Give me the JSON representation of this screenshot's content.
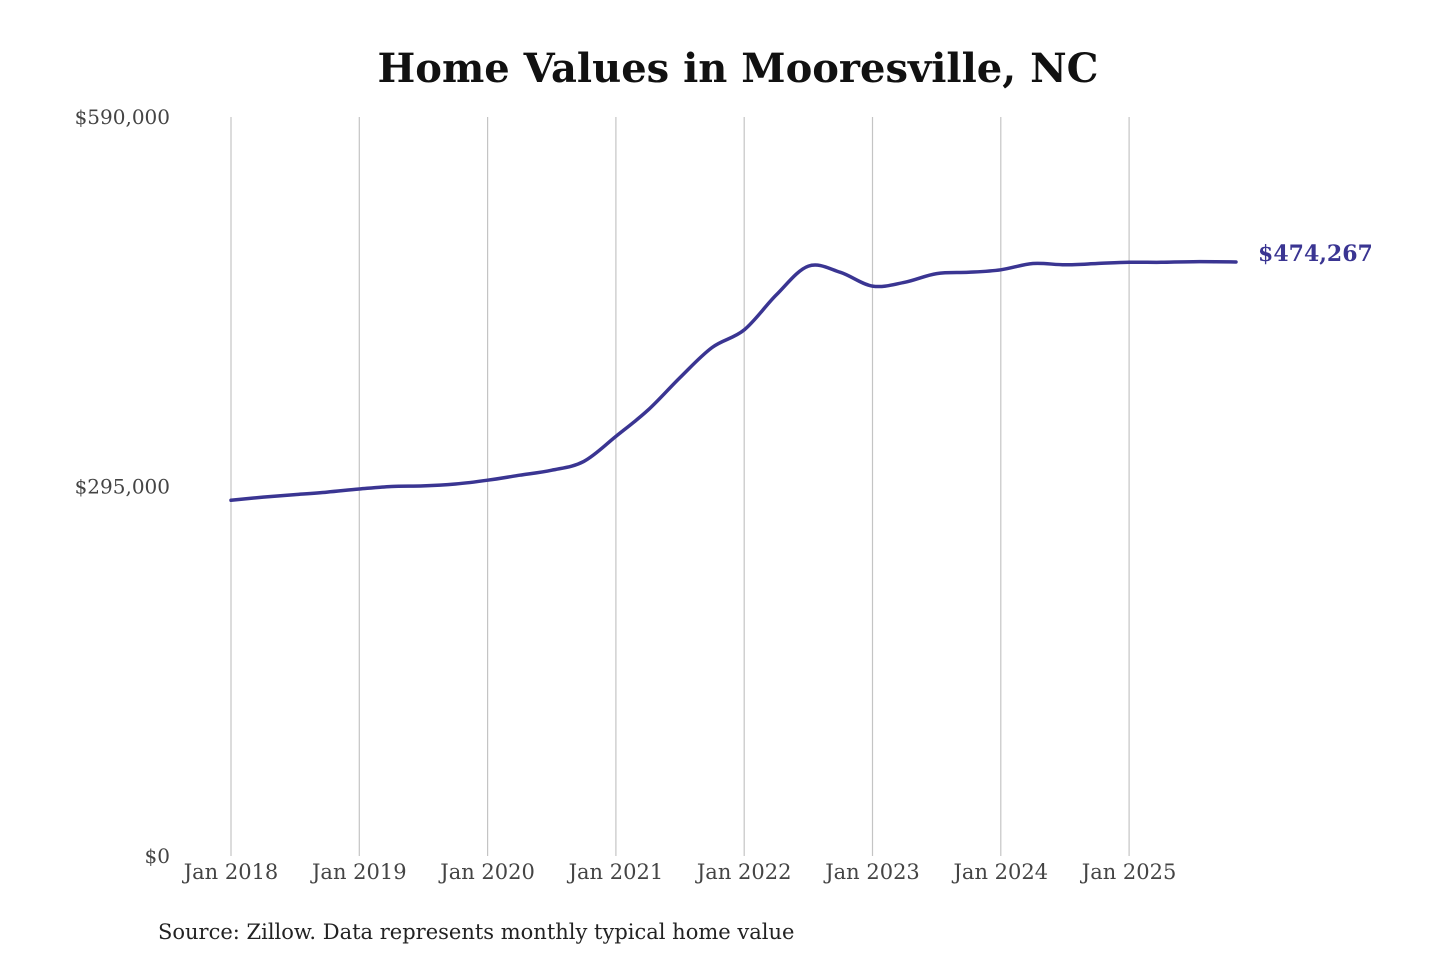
{
  "chart_data": {
    "type": "line",
    "title": "Home Values in Mooresville, NC",
    "xlabel": "",
    "ylabel": "",
    "x_ticks": [
      "Jan 2018",
      "Jan 2019",
      "Jan 2020",
      "Jan 2021",
      "Jan 2022",
      "Jan 2023",
      "Jan 2024",
      "Jan 2025"
    ],
    "y_ticks": [
      "$0",
      "$295,000",
      "$590,000"
    ],
    "y_tick_values": [
      0,
      295000,
      590000
    ],
    "ylim": [
      0,
      590000
    ],
    "xlim": [
      "2018-01",
      "2025-11"
    ],
    "grid": {
      "vertical": true,
      "horizontal": false
    },
    "legend": "none",
    "end_label": "$474,267",
    "line_color": "#3a3592",
    "series": [
      {
        "x": [
          "2018-01",
          "2018-04",
          "2018-07",
          "2018-10",
          "2019-01",
          "2019-04",
          "2019-07",
          "2019-10",
          "2020-01",
          "2020-04",
          "2020-07",
          "2020-10",
          "2021-01",
          "2021-04",
          "2021-07",
          "2021-10",
          "2022-01",
          "2022-04",
          "2022-07",
          "2022-10",
          "2023-01",
          "2023-04",
          "2023-07",
          "2023-10",
          "2024-01",
          "2024-04",
          "2024-07",
          "2024-10",
          "2025-01",
          "2025-04",
          "2025-07",
          "2025-11"
        ],
        "values": [
          284000,
          286500,
          288500,
          290500,
          293000,
          295000,
          295500,
          297000,
          300000,
          304000,
          308000,
          315000,
          335000,
          356000,
          382000,
          406000,
          420000,
          448000,
          471000,
          466000,
          455000,
          458000,
          465000,
          466000,
          468000,
          473000,
          472000,
          473000,
          474000,
          474000,
          474500,
          474267
        ]
      }
    ]
  },
  "source_note": "Source: Zillow. Data represents monthly typical home value"
}
